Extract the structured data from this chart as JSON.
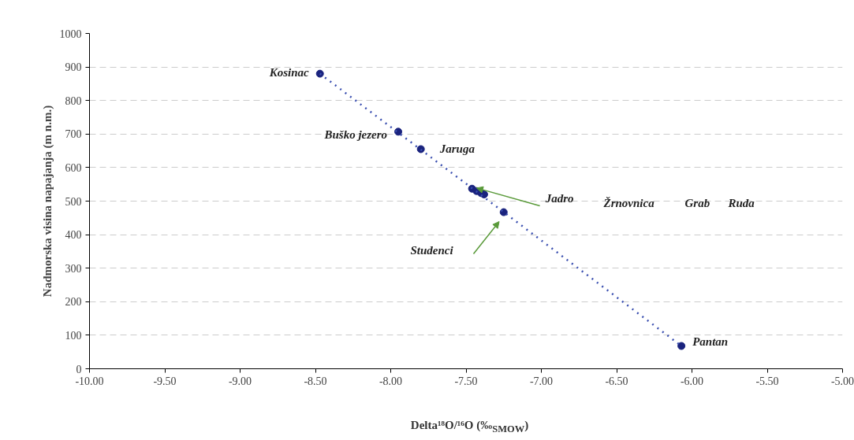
{
  "chart_data": {
    "type": "scatter",
    "xlabel": "Delta¹⁸O/¹⁶O (‰$_{SMOW}$)",
    "ylabel": "Nadmorska visina napajanja (m n.m.)",
    "x": [
      -8.47,
      -7.95,
      -7.8,
      -7.46,
      -7.43,
      -7.4,
      -7.38,
      -7.25,
      -6.07
    ],
    "series": [
      {
        "color": "#1a237e",
        "values": [
          880,
          707,
          655,
          537,
          530,
          524,
          520,
          467,
          68
        ]
      },
      {
        "type": "line",
        "color": "#3a4fb0",
        "line_style": "dotted",
        "marker": "none",
        "x": [
          -8.47,
          -6.07
        ],
        "values": [
          880,
          68
        ]
      }
    ],
    "annotations": [
      {
        "text": "Kosinac",
        "x": -8.47,
        "y": 880
      },
      {
        "text": "Buško jezero",
        "x": -7.95,
        "y": 707
      },
      {
        "text": "Jaruga",
        "x": -7.8,
        "y": 655
      },
      {
        "text": "Jadro",
        "x": -7.46,
        "y": 537
      },
      "Žrnovnica",
      "Grab",
      "Ruda",
      "Studenci",
      {
        "text": "Pantan",
        "x": -6.07,
        "y": 68
      }
    ],
    "xlim": [
      -10,
      -5
    ],
    "xticks": [
      {
        "value": -10,
        "label": "-10.00"
      },
      {
        "value": -9.5,
        "label": "-9.50"
      },
      {
        "value": -9,
        "label": "-9.00"
      },
      {
        "value": -8.5,
        "label": "-8.50"
      },
      {
        "value": -8,
        "label": "-8.00"
      },
      {
        "value": -7.5,
        "label": "-7.50"
      },
      {
        "value": -7,
        "label": "-7.00"
      },
      {
        "value": -6.5,
        "label": "-6.50"
      },
      {
        "value": -6,
        "label": "-6.00"
      },
      {
        "value": -5.5,
        "label": "-5.50"
      },
      {
        "value": -5,
        "label": "-5.00"
      }
    ],
    "ylim": [
      0,
      1000
    ],
    "yticks": [
      0,
      100,
      200,
      300,
      400,
      500,
      600,
      700,
      800,
      900,
      1000
    ],
    "grid": "y",
    "marker": "circle"
  }
}
